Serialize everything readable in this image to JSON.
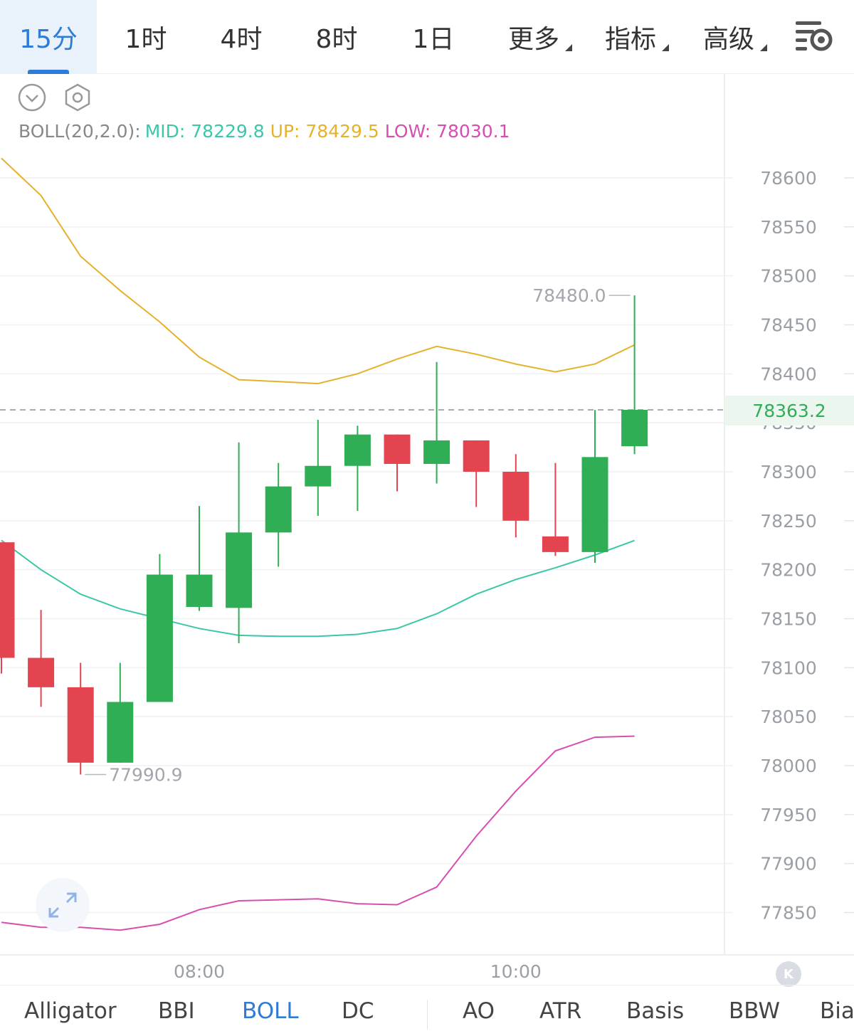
{
  "timeframes": [
    {
      "label": "15分",
      "active": true
    },
    {
      "label": "1时"
    },
    {
      "label": "4时"
    },
    {
      "label": "8时"
    },
    {
      "label": "1日"
    },
    {
      "label": "更多",
      "dropdown": true
    },
    {
      "label": "指标",
      "dropdown": true
    },
    {
      "label": "高级",
      "dropdown": true
    }
  ],
  "legend": {
    "boll": "BOLL(20,2.0):",
    "mid": "MID: 78229.8",
    "up": "UP: 78429.5",
    "low": "LOW: 78030.1"
  },
  "current_price": "78363.2",
  "high_marker": "78480.0",
  "low_marker": "77990.9",
  "k_button": "K",
  "indicators": [
    {
      "label": "Alligator"
    },
    {
      "label": "BBI"
    },
    {
      "label": "BOLL",
      "active": true
    },
    {
      "label": "DC"
    },
    {
      "label": "AO"
    },
    {
      "label": "ATR"
    },
    {
      "label": "Basis"
    },
    {
      "label": "BBW"
    },
    {
      "label": "Bias"
    }
  ],
  "colors": {
    "up_candle": "#2fae55",
    "down_candle": "#e4444f",
    "mid_line": "#3cc7a8",
    "upper_line": "#e6b22c",
    "lower_line": "#d64fb0",
    "accent": "#2f7bd8"
  },
  "chart_data": {
    "type": "candlestick",
    "y_ticks": [
      77850,
      77900,
      77950,
      78000,
      78050,
      78100,
      78150,
      78200,
      78250,
      78300,
      78350,
      78400,
      78450,
      78500,
      78550,
      78600
    ],
    "ylim": [
      77810,
      78650
    ],
    "x_ticks": [
      {
        "label": "08:00",
        "index": 5
      },
      {
        "label": "10:00",
        "index": 13
      }
    ],
    "grid": true,
    "candles": [
      {
        "open": 78228,
        "high": 78228,
        "low": 78094,
        "close": 78110
      },
      {
        "open": 78110,
        "high": 78159,
        "low": 78060,
        "close": 78080
      },
      {
        "open": 78080,
        "high": 78105,
        "low": 77990.9,
        "close": 78003
      },
      {
        "open": 78003,
        "high": 78105,
        "low": 78003,
        "close": 78065
      },
      {
        "open": 78065,
        "high": 78216,
        "low": 78065,
        "close": 78195
      },
      {
        "open": 78162,
        "high": 78265,
        "low": 78158,
        "close": 78195
      },
      {
        "open": 78161,
        "high": 78330,
        "low": 78125,
        "close": 78238
      },
      {
        "open": 78238,
        "high": 78309,
        "low": 78203,
        "close": 78285
      },
      {
        "open": 78285,
        "high": 78353,
        "low": 78255,
        "close": 78306
      },
      {
        "open": 78306,
        "high": 78347,
        "low": 78260,
        "close": 78338
      },
      {
        "open": 78338,
        "high": 78338,
        "low": 78280,
        "close": 78308
      },
      {
        "open": 78308,
        "high": 78412,
        "low": 78288,
        "close": 78332
      },
      {
        "open": 78332,
        "high": 78332,
        "low": 78264,
        "close": 78300
      },
      {
        "open": 78300,
        "high": 78318,
        "low": 78233,
        "close": 78250
      },
      {
        "open": 78234,
        "high": 78309,
        "low": 78214,
        "close": 78218
      },
      {
        "open": 78218,
        "high": 78363,
        "low": 78207,
        "close": 78315
      },
      {
        "open": 78326,
        "high": 78480,
        "low": 78318,
        "close": 78363.2
      }
    ],
    "series": [
      {
        "name": "UP",
        "values": [
          78620,
          78582,
          78520,
          78485,
          78453,
          78417,
          78394,
          78392,
          78390,
          78400,
          78415,
          78428,
          78420,
          78410,
          78402,
          78410,
          78429.5
        ]
      },
      {
        "name": "MID",
        "values": [
          78230,
          78200,
          78175,
          78160,
          78150,
          78140,
          78133,
          78132,
          78132,
          78134,
          78140,
          78155,
          78175,
          78190,
          78202,
          78215,
          78229.8
        ]
      },
      {
        "name": "LOW",
        "values": [
          77840,
          77835,
          77835,
          77832,
          77838,
          77853,
          77862,
          77863,
          77864,
          77859,
          77858,
          77876,
          77928,
          77974,
          78015,
          78029,
          78030.1
        ]
      }
    ]
  }
}
